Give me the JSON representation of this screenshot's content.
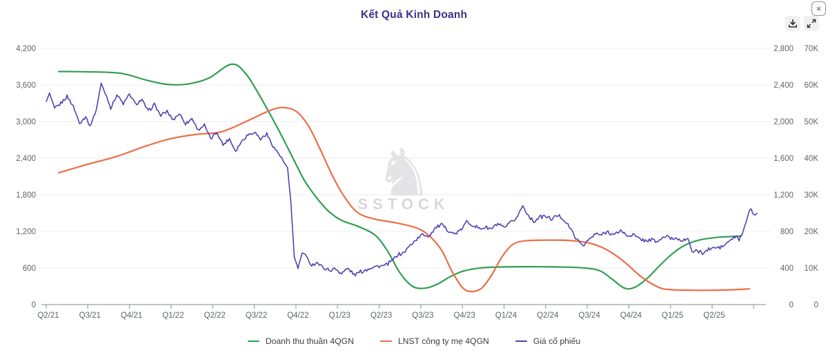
{
  "window": {
    "close_label": "×"
  },
  "toolbar": {
    "icons": [
      "download-icon",
      "expand-icon"
    ]
  },
  "watermark": {
    "logo_glyph": "♞",
    "text": "SSTOCK"
  },
  "chart_data": {
    "type": "line",
    "title": "Kết Quả Kinh Doanh",
    "grid": true,
    "legend_position": "bottom",
    "x_tick_labels": [
      "Q2/21",
      "Q3/21",
      "Q4/21",
      "Q1/22",
      "Q2/22",
      "Q3/22",
      "Q4/22",
      "Q1/23",
      "Q2/23",
      "Q3/23",
      "Q4/23",
      "Q1/24",
      "Q2/24",
      "Q3/24",
      "Q4/24",
      "Q1/25",
      "Q2/25"
    ],
    "left_axis": {
      "min": 0,
      "max": 4200,
      "step": 600,
      "tick_labels": [
        "0",
        "600",
        "1,200",
        "1,800",
        "2,400",
        "3,000",
        "3,600",
        "4,200"
      ]
    },
    "right_axis_inner": {
      "min": 0,
      "max": 2800,
      "step": 400,
      "tick_labels": [
        "0",
        "400",
        "800",
        "1,200",
        "1,600",
        "2,000",
        "2,400",
        "2,800"
      ]
    },
    "right_axis_outer": {
      "min": 0,
      "max": 70000,
      "step": 10000,
      "tick_labels": [
        "0",
        "10K",
        "20K",
        "30K",
        "40K",
        "50K",
        "60K",
        "70K"
      ]
    },
    "series": [
      {
        "name": "Doanh thu thuần 4QGN",
        "color": "#2f9e50",
        "axis": "left",
        "style": "smooth",
        "points": [
          [
            0.3,
            3820
          ],
          [
            1.0,
            3815
          ],
          [
            1.8,
            3790
          ],
          [
            2.4,
            3680
          ],
          [
            2.9,
            3610
          ],
          [
            3.4,
            3615
          ],
          [
            3.9,
            3710
          ],
          [
            4.45,
            3940
          ],
          [
            4.8,
            3780
          ],
          [
            5.2,
            3340
          ],
          [
            5.6,
            2840
          ],
          [
            5.9,
            2440
          ],
          [
            6.2,
            2040
          ],
          [
            6.5,
            1750
          ],
          [
            6.8,
            1520
          ],
          [
            7.1,
            1380
          ],
          [
            7.5,
            1280
          ],
          [
            7.9,
            1140
          ],
          [
            8.2,
            880
          ],
          [
            8.5,
            520
          ],
          [
            8.8,
            300
          ],
          [
            9.1,
            268
          ],
          [
            9.4,
            335
          ],
          [
            9.7,
            455
          ],
          [
            10.0,
            545
          ],
          [
            10.4,
            598
          ],
          [
            10.8,
            615
          ],
          [
            11.5,
            622
          ],
          [
            12.2,
            618
          ],
          [
            12.9,
            602
          ],
          [
            13.3,
            555
          ],
          [
            13.6,
            415
          ],
          [
            13.9,
            268
          ],
          [
            14.15,
            285
          ],
          [
            14.45,
            435
          ],
          [
            14.75,
            645
          ],
          [
            15.05,
            835
          ],
          [
            15.35,
            975
          ],
          [
            15.7,
            1060
          ],
          [
            16.1,
            1100
          ],
          [
            16.45,
            1115
          ],
          [
            16.7,
            1122
          ]
        ]
      },
      {
        "name": "LNST công ty mẹ 4QGN",
        "color": "#ee6c45",
        "axis": "left",
        "style": "smooth",
        "points": [
          [
            0.3,
            2160
          ],
          [
            1.0,
            2300
          ],
          [
            1.7,
            2430
          ],
          [
            2.4,
            2600
          ],
          [
            3.0,
            2720
          ],
          [
            3.6,
            2790
          ],
          [
            4.2,
            2830
          ],
          [
            4.8,
            3000
          ],
          [
            5.3,
            3160
          ],
          [
            5.65,
            3230
          ],
          [
            6.0,
            3170
          ],
          [
            6.3,
            2930
          ],
          [
            6.6,
            2520
          ],
          [
            6.9,
            2080
          ],
          [
            7.2,
            1730
          ],
          [
            7.5,
            1500
          ],
          [
            7.9,
            1400
          ],
          [
            8.4,
            1340
          ],
          [
            8.9,
            1255
          ],
          [
            9.2,
            1130
          ],
          [
            9.5,
            890
          ],
          [
            9.75,
            545
          ],
          [
            10.0,
            280
          ],
          [
            10.2,
            215
          ],
          [
            10.45,
            262
          ],
          [
            10.7,
            480
          ],
          [
            10.95,
            780
          ],
          [
            11.2,
            980
          ],
          [
            11.5,
            1045
          ],
          [
            12.0,
            1056
          ],
          [
            12.6,
            1050
          ],
          [
            13.1,
            1000
          ],
          [
            13.5,
            888
          ],
          [
            13.9,
            695
          ],
          [
            14.3,
            455
          ],
          [
            14.7,
            288
          ],
          [
            15.0,
            245
          ],
          [
            15.5,
            235
          ],
          [
            16.0,
            235
          ],
          [
            16.5,
            243
          ],
          [
            16.9,
            258
          ]
        ]
      },
      {
        "name": "Giá cổ phiếu",
        "color": "#4c43b3",
        "axis": "right_outer",
        "style": "jagged",
        "points": [
          [
            0,
            55500
          ],
          [
            0.08,
            57500
          ],
          [
            0.2,
            53500
          ],
          [
            0.35,
            55200
          ],
          [
            0.5,
            56800
          ],
          [
            0.65,
            54000
          ],
          [
            0.8,
            49800
          ],
          [
            0.95,
            51500
          ],
          [
            1.05,
            48500
          ],
          [
            1.2,
            53000
          ],
          [
            1.32,
            60500
          ],
          [
            1.45,
            57000
          ],
          [
            1.55,
            53500
          ],
          [
            1.7,
            57200
          ],
          [
            1.85,
            55000
          ],
          [
            2.0,
            57500
          ],
          [
            2.15,
            54500
          ],
          [
            2.3,
            56000
          ],
          [
            2.45,
            53000
          ],
          [
            2.6,
            54500
          ],
          [
            2.75,
            51500
          ],
          [
            2.9,
            53000
          ],
          [
            3.05,
            50500
          ],
          [
            3.2,
            52000
          ],
          [
            3.35,
            49500
          ],
          [
            3.5,
            51000
          ],
          [
            3.65,
            47500
          ],
          [
            3.8,
            49000
          ],
          [
            3.95,
            45500
          ],
          [
            4.1,
            47000
          ],
          [
            4.25,
            43500
          ],
          [
            4.4,
            45500
          ],
          [
            4.55,
            42000
          ],
          [
            4.7,
            44500
          ],
          [
            4.85,
            46500
          ],
          [
            5.0,
            47500
          ],
          [
            5.15,
            45000
          ],
          [
            5.3,
            46500
          ],
          [
            5.45,
            43500
          ],
          [
            5.6,
            41000
          ],
          [
            5.72,
            38500
          ],
          [
            5.8,
            37000
          ],
          [
            5.88,
            28000
          ],
          [
            5.96,
            13000
          ],
          [
            6.05,
            10000
          ],
          [
            6.15,
            14000
          ],
          [
            6.25,
            12800
          ],
          [
            6.38,
            10800
          ],
          [
            6.5,
            11800
          ],
          [
            6.65,
            10000
          ],
          [
            6.8,
            9200
          ],
          [
            6.95,
            10000
          ],
          [
            7.1,
            8600
          ],
          [
            7.25,
            9600
          ],
          [
            7.4,
            8200
          ],
          [
            7.55,
            9200
          ],
          [
            7.7,
            9400
          ],
          [
            7.85,
            10200
          ],
          [
            8.0,
            10800
          ],
          [
            8.15,
            10600
          ],
          [
            8.3,
            11600
          ],
          [
            8.45,
            13800
          ],
          [
            8.6,
            14400
          ],
          [
            8.75,
            16000
          ],
          [
            8.9,
            17800
          ],
          [
            9.05,
            19500
          ],
          [
            9.2,
            18600
          ],
          [
            9.35,
            20800
          ],
          [
            9.5,
            22000
          ],
          [
            9.65,
            20400
          ],
          [
            9.8,
            19000
          ],
          [
            9.95,
            20200
          ],
          [
            10.1,
            22800
          ],
          [
            10.25,
            21600
          ],
          [
            10.4,
            20600
          ],
          [
            10.55,
            21400
          ],
          [
            10.7,
            20600
          ],
          [
            10.85,
            21800
          ],
          [
            11.0,
            21000
          ],
          [
            11.15,
            22400
          ],
          [
            11.3,
            23400
          ],
          [
            11.45,
            27000
          ],
          [
            11.58,
            24600
          ],
          [
            11.72,
            22600
          ],
          [
            11.85,
            23600
          ],
          [
            12.0,
            24200
          ],
          [
            12.15,
            23600
          ],
          [
            12.3,
            24200
          ],
          [
            12.45,
            23000
          ],
          [
            12.6,
            21000
          ],
          [
            12.75,
            17600
          ],
          [
            12.9,
            16000
          ],
          [
            13.05,
            18000
          ],
          [
            13.2,
            19400
          ],
          [
            13.35,
            18800
          ],
          [
            13.5,
            20000
          ],
          [
            13.65,
            19200
          ],
          [
            13.8,
            20200
          ],
          [
            13.95,
            18600
          ],
          [
            14.1,
            19400
          ],
          [
            14.25,
            18000
          ],
          [
            14.4,
            17200
          ],
          [
            14.55,
            17800
          ],
          [
            14.7,
            17400
          ],
          [
            14.85,
            18400
          ],
          [
            15.0,
            18000
          ],
          [
            15.15,
            18400
          ],
          [
            15.3,
            17600
          ],
          [
            15.45,
            17200
          ],
          [
            15.52,
            14400
          ],
          [
            15.65,
            14800
          ],
          [
            15.8,
            14200
          ],
          [
            15.95,
            15000
          ],
          [
            16.1,
            15600
          ],
          [
            16.25,
            16000
          ],
          [
            16.4,
            17000
          ],
          [
            16.55,
            18400
          ],
          [
            16.65,
            18000
          ],
          [
            16.75,
            20000
          ],
          [
            16.85,
            24000
          ],
          [
            16.92,
            26200
          ],
          [
            17.0,
            24400
          ],
          [
            17.08,
            25200
          ]
        ]
      }
    ]
  }
}
